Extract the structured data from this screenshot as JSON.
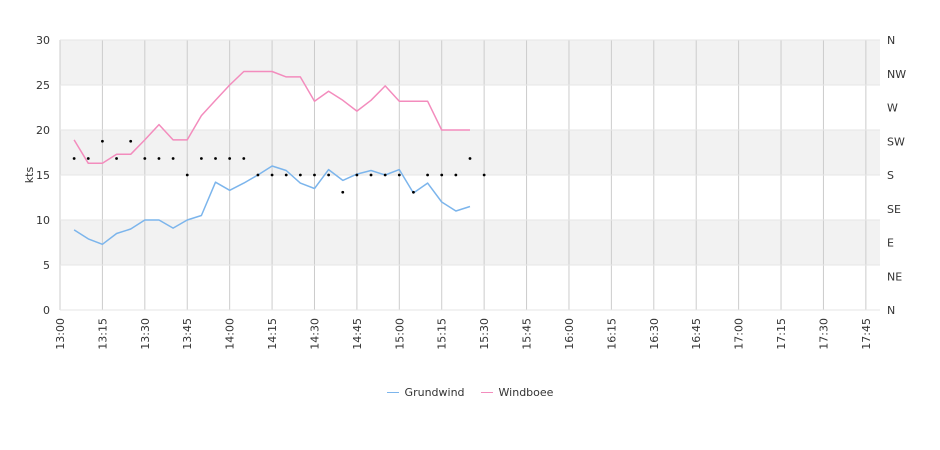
{
  "chart_data": {
    "type": "line",
    "ylabel": "kts",
    "ylim": [
      0,
      30
    ],
    "yticks": [
      "0",
      "5",
      "10",
      "15",
      "20",
      "25",
      "30"
    ],
    "x_start": "13:00",
    "x_interval_minutes": 5,
    "xticks": [
      "13:00",
      "13:15",
      "13:30",
      "13:45",
      "14:00",
      "14:15",
      "14:30",
      "14:45",
      "15:00",
      "15:15",
      "15:30",
      "15:45",
      "16:00",
      "16:15",
      "16:30",
      "16:45",
      "17:00",
      "17:15",
      "17:30",
      "17:45"
    ],
    "right_axis": {
      "labels": [
        "N",
        "NE",
        "E",
        "SE",
        "S",
        "SW",
        "W",
        "NW",
        "N"
      ],
      "range": [
        0,
        360
      ]
    },
    "grid": true,
    "legend_position": "bottom",
    "series": [
      {
        "name": "Grundwind",
        "color": "#7cb5ec",
        "x": [
          "13:05",
          "13:10",
          "13:15",
          "13:20",
          "13:25",
          "13:30",
          "13:35",
          "13:40",
          "13:45",
          "13:50",
          "13:55",
          "14:00",
          "14:05",
          "14:10",
          "14:15",
          "14:20",
          "14:25",
          "14:30",
          "14:35",
          "14:40",
          "14:45",
          "14:50",
          "14:55",
          "15:00",
          "15:05",
          "15:10",
          "15:15",
          "15:20",
          "15:25",
          "15:30",
          "15:35",
          "15:40",
          "15:45"
        ],
        "values": [
          8.9,
          7.9,
          7.3,
          8.5,
          9.0,
          10.0,
          10.0,
          9.1,
          10.0,
          10.5,
          14.2,
          13.3,
          14.1,
          15.0,
          16.0,
          15.5,
          14.1,
          13.5,
          15.6,
          14.4,
          15.1,
          15.5,
          15.0,
          15.6,
          13.0,
          14.1,
          12.0,
          11.0,
          11.5,
          null,
          null,
          null,
          null
        ]
      },
      {
        "name": "Windboee",
        "color": "#f38cbd",
        "x": [
          "13:05",
          "13:10",
          "13:15",
          "13:20",
          "13:25",
          "13:30",
          "13:35",
          "13:40",
          "13:45",
          "13:50",
          "13:55",
          "14:00",
          "14:05",
          "14:10",
          "14:15",
          "14:20",
          "14:25",
          "14:30",
          "14:35",
          "14:40",
          "14:45",
          "14:50",
          "14:55",
          "15:00",
          "15:05",
          "15:10",
          "15:15",
          "15:20",
          "15:25"
        ],
        "values": [
          18.9,
          16.3,
          16.3,
          17.3,
          17.3,
          18.9,
          20.6,
          18.9,
          18.9,
          21.6,
          23.3,
          25.0,
          26.5,
          26.5,
          26.5,
          25.9,
          25.9,
          23.2,
          24.3,
          23.3,
          22.1,
          23.3,
          24.9,
          23.2,
          23.2,
          23.2,
          20.0,
          20.0,
          20.0
        ]
      }
    ],
    "direction_deg": [
      202,
      202,
      225,
      202,
      225,
      202,
      202,
      202,
      180,
      202,
      202,
      202,
      202,
      180,
      180,
      180,
      180,
      180,
      180,
      157,
      180,
      180,
      180,
      180,
      157,
      180,
      180,
      180,
      202,
      180
    ]
  },
  "legend": {
    "grundwind": "Grundwind",
    "windboee": "Windboee"
  }
}
